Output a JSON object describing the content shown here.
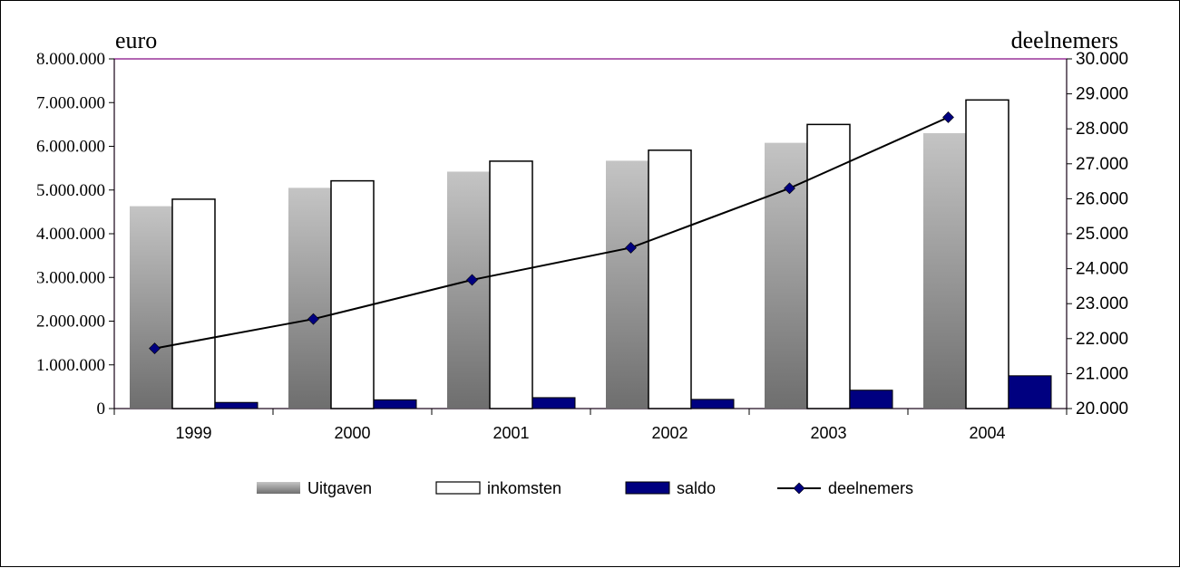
{
  "chart_data": {
    "type": "bar",
    "left_axis_title": "euro",
    "right_axis_title": "deelnemers",
    "categories": [
      "1999",
      "2000",
      "2001",
      "2002",
      "2003",
      "2004"
    ],
    "series": [
      {
        "name": "Uitgaven",
        "kind": "bar",
        "axis": "left",
        "color": "#8c8c8c",
        "values": [
          4630000,
          5050000,
          5420000,
          5670000,
          6080000,
          6300000
        ]
      },
      {
        "name": "inkomsten",
        "kind": "bar",
        "axis": "left",
        "color": "#ffffff",
        "values": [
          4790000,
          5210000,
          5660000,
          5910000,
          6500000,
          7060000
        ]
      },
      {
        "name": "saldo",
        "kind": "bar",
        "axis": "left",
        "color": "#000080",
        "values": [
          140000,
          200000,
          250000,
          210000,
          420000,
          750000
        ]
      },
      {
        "name": "deelnemers",
        "kind": "line",
        "axis": "right",
        "color": "#000080",
        "values": [
          21720,
          22560,
          23680,
          24600,
          26300,
          28330
        ]
      }
    ],
    "left_axis": {
      "min": 0,
      "max": 8000000,
      "step": 1000000,
      "tick_labels": [
        "0",
        "1.000.000",
        "2.000.000",
        "3.000.000",
        "4.000.000",
        "5.000.000",
        "6.000.000",
        "7.000.000",
        "8.000.000"
      ]
    },
    "right_axis": {
      "min": 20000,
      "max": 30000,
      "step": 1000,
      "tick_labels": [
        "20.000",
        "21.000",
        "22.000",
        "23.000",
        "24.000",
        "25.000",
        "26.000",
        "27.000",
        "28.000",
        "29.000",
        "30.000"
      ]
    },
    "legend_position": "bottom",
    "grid": false,
    "colors": {
      "plot_border": "#800080",
      "bar_gradient_top": "#c4c4c4",
      "bar_gradient_bottom": "#6e6e6e",
      "marker": "#000080"
    }
  }
}
